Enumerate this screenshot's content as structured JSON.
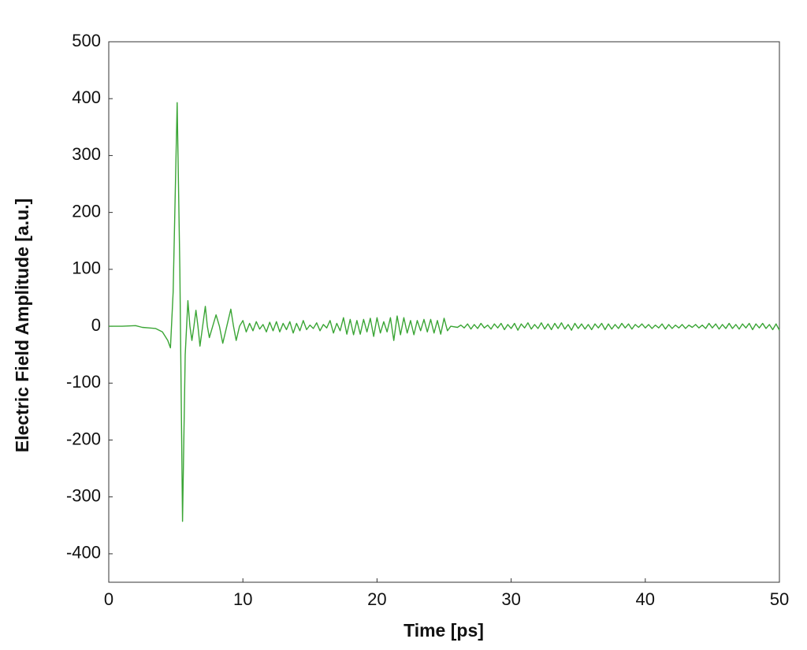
{
  "chart_data": {
    "type": "line",
    "xlabel": "Time [ps]",
    "ylabel": "Electric Field Amplitude [a.u.]",
    "x": [
      0,
      1,
      2,
      2.5,
      3,
      3.5,
      4,
      4.4,
      4.6,
      4.8,
      5.1,
      5.3,
      5.5,
      5.7,
      5.9,
      6.05,
      6.2,
      6.35,
      6.5,
      6.65,
      6.8,
      7.0,
      7.2,
      7.35,
      7.5,
      7.75,
      8.0,
      8.25,
      8.5,
      8.8,
      9.1,
      9.3,
      9.5,
      9.75,
      10,
      10.25,
      10.5,
      10.75,
      11,
      11.25,
      11.5,
      11.75,
      12,
      12.25,
      12.5,
      12.75,
      13,
      13.25,
      13.5,
      13.75,
      14,
      14.25,
      14.5,
      14.75,
      15,
      15.25,
      15.5,
      15.75,
      16,
      16.25,
      16.5,
      16.75,
      17,
      17.25,
      17.5,
      17.75,
      18,
      18.25,
      18.5,
      18.75,
      19,
      19.25,
      19.5,
      19.75,
      20,
      20.25,
      20.5,
      20.75,
      21,
      21.25,
      21.5,
      21.75,
      22,
      22.25,
      22.5,
      22.75,
      23,
      23.25,
      23.5,
      23.75,
      24,
      24.25,
      24.5,
      24.75,
      25,
      25.25,
      25.5,
      26,
      26.25,
      26.5,
      26.75,
      27,
      27.25,
      27.5,
      27.75,
      28,
      28.25,
      28.5,
      28.75,
      29,
      29.25,
      29.5,
      29.75,
      30,
      30.25,
      30.5,
      30.75,
      31,
      31.25,
      31.5,
      31.75,
      32,
      32.25,
      32.5,
      32.75,
      33,
      33.25,
      33.5,
      33.75,
      34,
      34.25,
      34.5,
      34.75,
      35,
      35.25,
      35.5,
      35.75,
      36,
      36.25,
      36.5,
      36.75,
      37,
      37.25,
      37.5,
      37.75,
      38,
      38.25,
      38.5,
      38.75,
      39,
      39.25,
      39.5,
      39.75,
      40,
      40.25,
      40.5,
      40.75,
      41,
      41.25,
      41.5,
      41.75,
      42,
      42.25,
      42.5,
      42.75,
      43,
      43.25,
      43.5,
      43.75,
      44,
      44.25,
      44.5,
      44.75,
      45,
      45.25,
      45.5,
      45.75,
      46,
      46.25,
      46.5,
      46.75,
      47,
      47.25,
      47.5,
      47.75,
      48,
      48.25,
      48.5,
      48.75,
      49,
      49.25,
      49.5,
      49.75,
      50
    ],
    "series": [
      {
        "color": "#3aa535",
        "values": [
          0,
          0,
          1,
          -2,
          -3,
          -4,
          -10,
          -25,
          -38,
          60,
          393,
          100,
          -343,
          -50,
          45,
          0,
          -25,
          0,
          28,
          0,
          -35,
          0,
          35,
          0,
          -20,
          0,
          20,
          0,
          -30,
          0,
          30,
          0,
          -25,
          0,
          10,
          -10,
          5,
          -8,
          8,
          -5,
          3,
          -10,
          7,
          -8,
          8,
          -10,
          5,
          -6,
          8,
          -12,
          5,
          -8,
          10,
          -6,
          2,
          -4,
          6,
          -8,
          3,
          -3,
          10,
          -12,
          5,
          -8,
          15,
          -14,
          12,
          -15,
          10,
          -14,
          12,
          -10,
          14,
          -18,
          15,
          -12,
          8,
          -10,
          15,
          -25,
          18,
          -15,
          15,
          -12,
          10,
          -15,
          10,
          -8,
          12,
          -10,
          12,
          -12,
          10,
          -14,
          14,
          -8,
          0,
          -2,
          2,
          -3,
          4,
          -5,
          3,
          -4,
          5,
          -3,
          2,
          -5,
          4,
          -3,
          5,
          -6,
          3,
          -4,
          5,
          -7,
          4,
          -3,
          6,
          -5,
          3,
          -4,
          6,
          -5,
          4,
          -6,
          5,
          -4,
          6,
          -5,
          3,
          -7,
          5,
          -4,
          4,
          -5,
          3,
          -6,
          4,
          -3,
          5,
          -6,
          4,
          -5,
          3,
          -4,
          5,
          -3,
          4,
          -5,
          3,
          -2,
          4,
          -3,
          3,
          -4,
          2,
          -3,
          4,
          -5,
          3,
          -4,
          2,
          -3,
          3,
          -4,
          2,
          -2,
          3,
          -3,
          2,
          -4,
          5,
          -3,
          4,
          -5,
          3,
          -4,
          5,
          -4,
          3,
          -5,
          4,
          -3,
          5,
          -6,
          4,
          -3,
          5,
          -4,
          3,
          -6,
          4,
          -7
        ]
      }
    ],
    "xlim": [
      0,
      50
    ],
    "xticks": [
      0,
      10,
      20,
      30,
      40,
      50
    ],
    "ylim": [
      -450,
      500
    ],
    "yticks": [
      -400,
      -300,
      -200,
      -100,
      0,
      100,
      200,
      300,
      400,
      500
    ],
    "grid": false
  }
}
